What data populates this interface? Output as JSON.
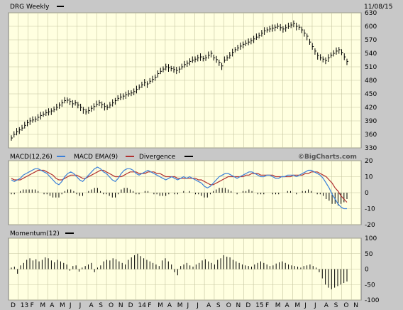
{
  "header": {
    "symbol": "DRG Weekly",
    "date": "11/08/15",
    "watermark": "©BigCharts.com"
  },
  "legend": {
    "macd": "MACD(12,26)",
    "ema": "MACD EMA(9)",
    "divergence": "Divergence",
    "momentum": "Momentum(12)"
  },
  "colors": {
    "panel_bg": "#ffffe0",
    "grid": "#c6c6a0",
    "frame": "#c8c8c8",
    "macd": "#3a7fd8",
    "ema": "#b03030",
    "bars": "#000000"
  },
  "chart_data": [
    {
      "type": "ohlc",
      "title": "DRG Weekly",
      "y_ticks": [
        330,
        360,
        390,
        420,
        450,
        480,
        510,
        540,
        570,
        600,
        630
      ],
      "ylim": [
        330,
        630
      ],
      "grid": true,
      "series": [
        {
          "name": "DRG",
          "values": [
            352,
            360,
            366,
            370,
            374,
            380,
            386,
            390,
            392,
            394,
            398,
            402,
            405,
            408,
            410,
            412,
            415,
            420,
            425,
            430,
            435,
            436,
            433,
            428,
            430,
            425,
            420,
            415,
            410,
            413,
            418,
            422,
            427,
            430,
            426,
            422,
            420,
            425,
            430,
            435,
            440,
            443,
            445,
            448,
            450,
            452,
            455,
            460,
            465,
            470,
            475,
            472,
            478,
            482,
            487,
            495,
            500,
            505,
            510,
            508,
            506,
            504,
            502,
            505,
            510,
            515,
            518,
            522,
            525,
            527,
            530,
            532,
            528,
            530,
            536,
            540,
            530,
            526,
            520,
            512,
            525,
            530,
            536,
            542,
            548,
            552,
            556,
            560,
            562,
            565,
            568,
            572,
            576,
            580,
            585,
            590,
            592,
            594,
            596,
            598,
            600,
            597,
            594,
            597,
            600,
            603,
            606,
            600,
            598,
            592,
            585,
            578,
            565,
            555,
            545,
            535,
            530,
            527,
            524,
            530,
            536,
            540,
            545,
            548,
            542,
            532,
            522
          ]
        }
      ]
    },
    {
      "type": "line",
      "title": "MACD(12,26)",
      "y_ticks": [
        20,
        10,
        0,
        -10,
        -20
      ],
      "ylim": [
        -20,
        20
      ],
      "series": [
        {
          "name": "MACD(12,26)",
          "values": [
            8,
            7,
            8,
            9,
            11,
            12,
            13,
            14,
            15,
            15,
            14,
            13,
            12,
            10,
            8,
            6,
            5,
            7,
            10,
            12,
            13,
            12,
            10,
            8,
            7,
            9,
            11,
            13,
            15,
            16,
            15,
            13,
            12,
            10,
            8,
            7,
            9,
            12,
            14,
            15,
            15,
            14,
            12,
            11,
            12,
            13,
            14,
            13,
            12,
            11,
            10,
            9,
            8,
            9,
            10,
            9,
            8,
            9,
            10,
            9,
            10,
            9,
            8,
            7,
            6,
            4,
            3,
            4,
            6,
            8,
            10,
            11,
            12,
            12,
            11,
            10,
            9,
            10,
            11,
            12,
            13,
            13,
            12,
            11,
            10,
            10,
            11,
            11,
            10,
            9,
            9,
            10,
            10,
            11,
            11,
            11,
            10,
            11,
            12,
            13,
            14,
            14,
            13,
            12,
            11,
            9,
            6,
            3,
            -1,
            -4,
            -7,
            -9,
            -10,
            -10
          ]
        },
        {
          "name": "MACD EMA(9)",
          "values": [
            9,
            8,
            8,
            8,
            9,
            10,
            11,
            12,
            13,
            14,
            14,
            14,
            13,
            12,
            11,
            9,
            8,
            8,
            9,
            10,
            11,
            11,
            11,
            10,
            9,
            9,
            10,
            11,
            12,
            13,
            14,
            14,
            13,
            12,
            11,
            10,
            10,
            10,
            11,
            12,
            13,
            13,
            13,
            12,
            12,
            12,
            13,
            13,
            13,
            12,
            12,
            11,
            10,
            10,
            10,
            10,
            9,
            9,
            9,
            9,
            9,
            9,
            9,
            8,
            8,
            7,
            6,
            5,
            5,
            6,
            7,
            8,
            9,
            10,
            10,
            10,
            10,
            10,
            10,
            11,
            11,
            12,
            12,
            12,
            11,
            11,
            11,
            11,
            11,
            10,
            10,
            10,
            10,
            10,
            10,
            11,
            11,
            11,
            11,
            12,
            12,
            13,
            13,
            13,
            12,
            11,
            10,
            8,
            6,
            3,
            1,
            -2,
            -4,
            -6
          ]
        },
        {
          "name": "Divergence",
          "values": [
            -1,
            -1,
            0,
            1,
            2,
            2,
            2,
            2,
            2,
            1,
            0,
            -1,
            -1,
            -2,
            -3,
            -3,
            -3,
            -1,
            1,
            2,
            2,
            1,
            -1,
            -2,
            -2,
            0,
            1,
            2,
            3,
            3,
            1,
            -1,
            -1,
            -2,
            -3,
            -3,
            -1,
            2,
            3,
            3,
            2,
            1,
            -1,
            -1,
            0,
            1,
            1,
            0,
            -1,
            -1,
            -2,
            -2,
            -2,
            -1,
            0,
            -1,
            -1,
            0,
            1,
            0,
            1,
            0,
            -1,
            -1,
            -2,
            -3,
            -3,
            -1,
            1,
            2,
            3,
            3,
            3,
            2,
            1,
            0,
            -1,
            0,
            1,
            1,
            2,
            1,
            0,
            -1,
            -1,
            -1,
            0,
            0,
            -1,
            -1,
            -1,
            0,
            0,
            1,
            1,
            0,
            -1,
            0,
            1,
            1,
            2,
            1,
            0,
            -1,
            -1,
            -2,
            -4,
            -5,
            -7,
            -7,
            -8,
            -7,
            -6,
            -4
          ]
        }
      ]
    },
    {
      "type": "bar",
      "title": "Momentum(12)",
      "y_ticks": [
        100,
        50,
        0,
        -50,
        -100
      ],
      "ylim": [
        -100,
        100
      ],
      "series": [
        {
          "name": "Momentum(12)",
          "values": [
            5,
            8,
            -15,
            12,
            20,
            30,
            35,
            28,
            32,
            25,
            30,
            38,
            35,
            28,
            22,
            30,
            25,
            20,
            15,
            -5,
            10,
            12,
            -8,
            5,
            10,
            15,
            20,
            -10,
            5,
            12,
            25,
            30,
            28,
            35,
            32,
            25,
            20,
            15,
            30,
            38,
            45,
            50,
            42,
            35,
            30,
            25,
            20,
            15,
            10,
            28,
            35,
            25,
            15,
            -10,
            -20,
            10,
            15,
            20,
            12,
            8,
            15,
            20,
            28,
            32,
            25,
            20,
            15,
            30,
            35,
            45,
            40,
            38,
            30,
            25,
            20,
            15,
            12,
            10,
            8,
            15,
            20,
            25,
            20,
            15,
            10,
            12,
            18,
            22,
            25,
            20,
            15,
            12,
            10,
            8,
            5,
            10,
            12,
            15,
            10,
            5,
            -10,
            -30,
            -50,
            -60,
            -65,
            -60,
            -55,
            -50,
            -45,
            -40
          ]
        }
      ]
    }
  ],
  "x_axis": {
    "labels": [
      "D",
      "13",
      "F",
      "M",
      "A",
      "M",
      "J",
      "J",
      "A",
      "S",
      "O",
      "N",
      "D",
      "14",
      "F",
      "M",
      "A",
      "M",
      "J",
      "J",
      "A",
      "S",
      "O",
      "N",
      "D",
      "15",
      "F",
      "M",
      "A",
      "M",
      "J",
      "J",
      "A",
      "S",
      "O",
      "N"
    ]
  }
}
